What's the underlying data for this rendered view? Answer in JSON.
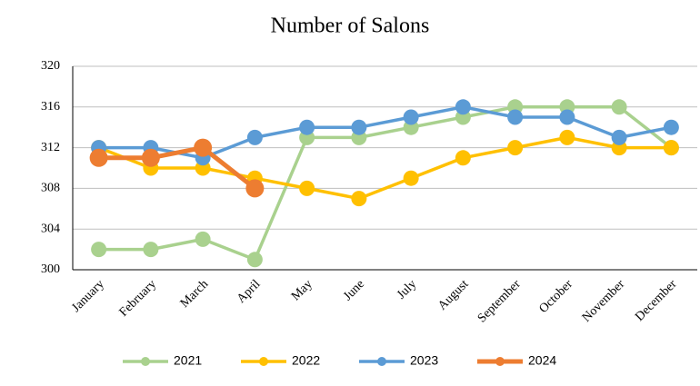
{
  "chart_data": {
    "type": "line",
    "title": "Number of Salons",
    "categories": [
      "January",
      "February",
      "March",
      "April",
      "May",
      "June",
      "July",
      "August",
      "September",
      "October",
      "November",
      "December"
    ],
    "series": [
      {
        "name": "2021",
        "color": "#a9d18e",
        "values": [
          302,
          302,
          303,
          301,
          313,
          313,
          314,
          315,
          316,
          316,
          316,
          312
        ]
      },
      {
        "name": "2022",
        "color": "#ffc000",
        "values": [
          312,
          310,
          310,
          309,
          308,
          307,
          309,
          311,
          312,
          313,
          312,
          312
        ]
      },
      {
        "name": "2023",
        "color": "#5b9bd5",
        "values": [
          312,
          312,
          311,
          313,
          314,
          314,
          315,
          316,
          315,
          315,
          313,
          314
        ]
      },
      {
        "name": "2024",
        "color": "#ed7d31",
        "values": [
          311,
          311,
          312,
          308,
          null,
          null,
          null,
          null,
          null,
          null,
          null,
          null
        ]
      }
    ],
    "ylim": [
      300,
      320
    ],
    "yticks": [
      300,
      304,
      308,
      312,
      316,
      320
    ],
    "grid": true,
    "legend": "bottom"
  }
}
